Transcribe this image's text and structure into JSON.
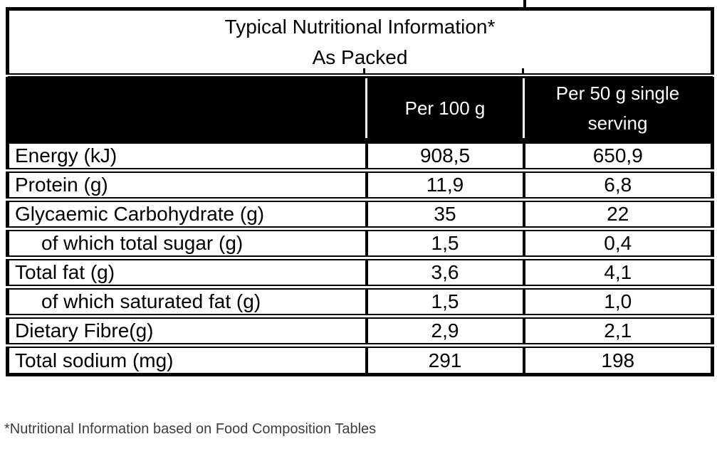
{
  "table": {
    "title_line1": "Typical Nutritional Information*",
    "title_line2": "As Packed",
    "columns": [
      "",
      "Per 100 g",
      "Per 50 g single serving"
    ],
    "rows": [
      {
        "label": "Energy (kJ)",
        "per_100g": "908,5",
        "per_50g": "650,9"
      },
      {
        "label": "Protein (g)",
        "per_100g": "11,9",
        "per_50g": "6,8"
      },
      {
        "label": "Glycaemic Carbohydrate (g)",
        "per_100g": "35",
        "per_50g": "22"
      },
      {
        "label": "of which total sugar (g)",
        "per_100g": "1,5",
        "per_50g": "0,4"
      },
      {
        "label": "Total fat (g)",
        "per_100g": "3,6",
        "per_50g": "4,1"
      },
      {
        "label": "of which saturated fat (g)",
        "per_100g": "1,5",
        "per_50g": "1,0"
      },
      {
        "label": "Dietary Fibre(g)",
        "per_100g": "2,9",
        "per_50g": "2,1"
      },
      {
        "label": "Total sodium (mg)",
        "per_100g": "291",
        "per_50g": "198"
      }
    ],
    "footnote": "*Nutritional Information based on Food Composition Tables"
  },
  "colors": {
    "header_bg": "#000000",
    "header_text": "#ffffff",
    "border": "#000000",
    "footnote_text": "#3d3d3d"
  }
}
